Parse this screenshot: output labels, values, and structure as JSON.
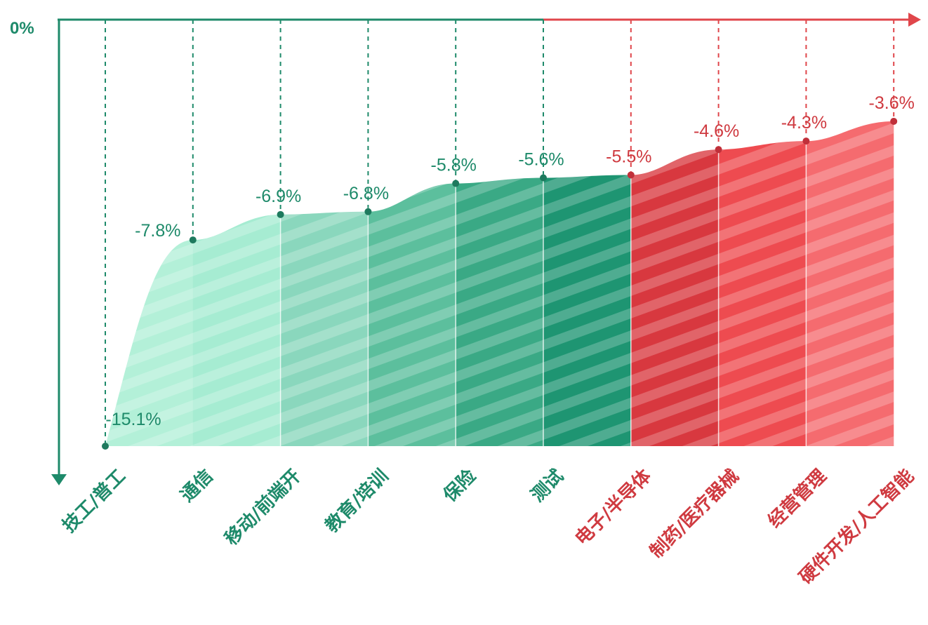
{
  "chart_data": {
    "type": "area",
    "title": "",
    "xlabel": "",
    "ylabel": "",
    "zero_label": "0%",
    "ylim": [
      -15.1,
      0
    ],
    "grid": false,
    "legend": "none",
    "categories": [
      "技工/普工",
      "通信",
      "移动/前端开",
      "教育/培训",
      "保险",
      "测试",
      "电子/半导体",
      "制药/医疗器械",
      "经营管理",
      "硬件开发/人工智能"
    ],
    "values": [
      -15.1,
      -7.8,
      -6.9,
      -6.8,
      -5.8,
      -5.6,
      -5.5,
      -4.6,
      -4.3,
      -3.6
    ],
    "value_labels": [
      "-15.1%",
      "-7.8%",
      "-6.9%",
      "-6.8%",
      "-5.8%",
      "-5.6%",
      "-5.5%",
      "-4.6%",
      "-4.3%",
      "-3.6%"
    ],
    "colors": {
      "green_axis": "#1e8a6a",
      "red_axis": "#e0464b",
      "green_text": "#1e8a6a",
      "red_text": "#cf3a40",
      "fills": [
        "#b3f0d8",
        "#a6ecd2",
        "#8ad7bd",
        "#5cbf9d",
        "#3aa985",
        "#1e9572",
        "#d8383f",
        "#ee4b50",
        "#f56b6f",
        "#f99294"
      ]
    }
  }
}
